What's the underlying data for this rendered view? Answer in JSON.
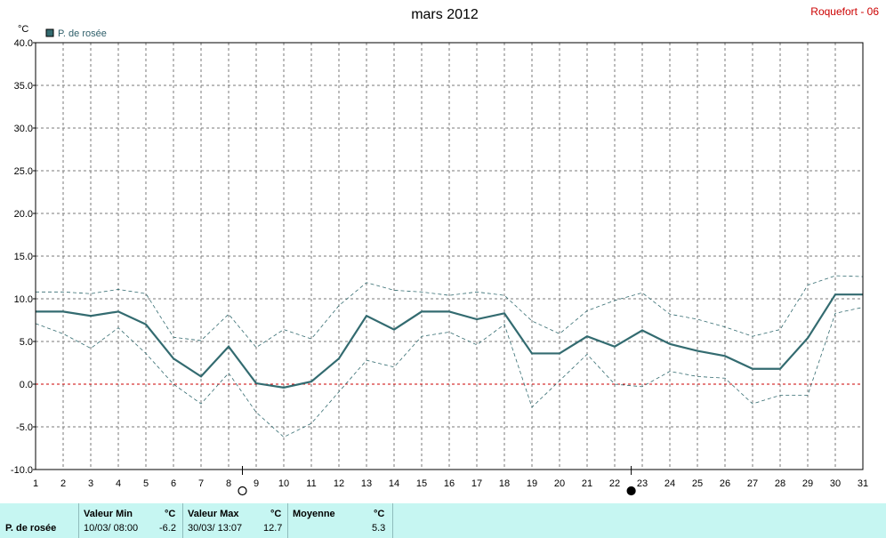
{
  "header": {
    "title": "mars 2012",
    "station": "Roquefort - 06",
    "unit": "°C",
    "legend": "P. de rosée"
  },
  "colors": {
    "series": "#336b70",
    "envelope": "#336b70",
    "zero_line": "#cc0000",
    "grid": "#7a7a7a",
    "footer_bg": "#c6f6f2"
  },
  "moon_phases": [
    {
      "day": 8.5,
      "phase": "full-moon"
    },
    {
      "day": 22.6,
      "phase": "new-moon"
    }
  ],
  "chart_data": {
    "type": "line",
    "title": "mars 2012",
    "ylabel": "°C",
    "ylim": [
      -10,
      40
    ],
    "xlim": [
      1,
      31
    ],
    "y_ticks": [
      "40.0",
      "35.0",
      "30.0",
      "25.0",
      "20.0",
      "15.0",
      "10.0",
      "5.0",
      "0.0",
      "-5.0",
      "-10.0"
    ],
    "x_ticks": [
      "1",
      "2",
      "3",
      "4",
      "5",
      "6",
      "7",
      "8",
      "9",
      "10",
      "11",
      "12",
      "13",
      "14",
      "15",
      "16",
      "17",
      "18",
      "19",
      "20",
      "21",
      "22",
      "23",
      "24",
      "25",
      "26",
      "27",
      "28",
      "29",
      "30",
      "31"
    ],
    "grid": true,
    "legend_position": "top-left",
    "x": [
      1,
      2,
      3,
      4,
      5,
      6,
      7,
      8,
      9,
      10,
      11,
      12,
      13,
      14,
      15,
      16,
      17,
      18,
      19,
      20,
      21,
      22,
      23,
      24,
      25,
      26,
      27,
      28,
      29,
      30,
      31
    ],
    "series": [
      {
        "name": "P. de rosée",
        "values": [
          8.5,
          8.5,
          8.0,
          8.5,
          7.0,
          3.0,
          0.9,
          4.4,
          0.1,
          -0.4,
          0.3,
          3.0,
          8.0,
          6.4,
          8.5,
          8.5,
          7.6,
          8.3,
          3.6,
          3.6,
          5.6,
          4.4,
          6.3,
          4.7,
          3.9,
          3.3,
          1.8,
          1.8,
          5.4,
          10.5,
          10.5
        ]
      },
      {
        "name": "",
        "values": [
          10.8,
          10.8,
          10.6,
          11.1,
          10.6,
          5.5,
          5.1,
          8.2,
          4.3,
          6.4,
          5.3,
          9.2,
          11.9,
          11.0,
          10.8,
          10.4,
          10.8,
          10.4,
          7.4,
          5.9,
          8.6,
          9.8,
          10.7,
          8.2,
          7.6,
          6.7,
          5.6,
          6.4,
          11.6,
          12.7,
          12.6
        ]
      },
      {
        "name": "",
        "values": [
          7.1,
          5.9,
          4.2,
          6.6,
          3.6,
          0.0,
          -2.3,
          1.3,
          -3.3,
          -6.2,
          -4.6,
          -0.9,
          2.8,
          2.0,
          5.6,
          6.1,
          4.6,
          7.0,
          -2.7,
          0.4,
          3.5,
          0.0,
          -0.3,
          1.5,
          0.9,
          0.7,
          -2.3,
          -1.3,
          -1.3,
          8.3,
          9.0
        ]
      }
    ]
  },
  "footer": {
    "row_label": "P. de rosée",
    "min_header": "Valeur Min",
    "max_header": "Valeur Max",
    "avg_header": "Moyenne",
    "unit": "°C",
    "min_date": "10/03/  08:00",
    "min_value": "-6.2",
    "max_date": "30/03/  13:07",
    "max_value": "12.7",
    "avg_value": "5.3"
  }
}
